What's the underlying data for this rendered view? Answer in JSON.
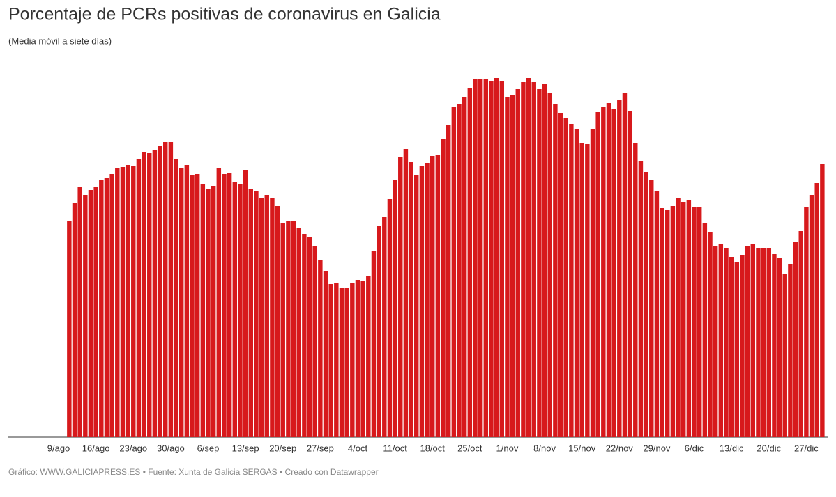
{
  "chart_data": {
    "type": "bar",
    "title": "Porcentaje de PCRs positivas de coronavirus en Galicia",
    "subtitle": "(Media móvil a siete días)",
    "source": "Gráfico: WWW.GALICIAPRESS.ES • Fuente: Xunta de Galicia SERGAS • Creado con Datawrapper",
    "color": "#d7191c",
    "ylim": [
      0,
      550
    ],
    "categories": [
      "9/ago",
      null,
      null,
      null,
      null,
      null,
      null,
      "16/ago",
      null,
      null,
      null,
      null,
      null,
      null,
      "23/ago",
      null,
      null,
      null,
      null,
      null,
      null,
      "30/ago",
      null,
      null,
      null,
      null,
      null,
      null,
      "6/sep",
      null,
      null,
      null,
      null,
      null,
      null,
      "13/sep",
      null,
      null,
      null,
      null,
      null,
      null,
      "20/sep",
      null,
      null,
      null,
      null,
      null,
      null,
      "27/sep",
      null,
      null,
      null,
      null,
      null,
      null,
      "4/oct",
      null,
      null,
      null,
      null,
      null,
      null,
      "11/oct",
      null,
      null,
      null,
      null,
      null,
      null,
      "18/oct",
      null,
      null,
      null,
      null,
      null,
      null,
      "25/oct",
      null,
      null,
      null,
      null,
      null,
      null,
      "1/nov",
      null,
      null,
      null,
      null,
      null,
      null,
      "8/nov",
      null,
      null,
      null,
      null,
      null,
      null,
      "15/nov",
      null,
      null,
      null,
      null,
      null,
      null,
      "22/nov",
      null,
      null,
      null,
      null,
      null,
      null,
      "29/nov",
      null,
      null,
      null,
      null,
      null,
      null,
      "6/dic",
      null,
      null,
      null,
      null,
      null,
      null,
      "13/dic",
      null,
      null,
      null,
      null,
      null,
      null,
      "20/dic",
      null,
      null,
      null,
      null,
      null,
      null,
      "27/dic",
      null,
      null,
      null
    ],
    "values": [
      null,
      null,
      310,
      336,
      360,
      348,
      355,
      360,
      369,
      373,
      378,
      386,
      388,
      391,
      390,
      399,
      409,
      408,
      413,
      418,
      424,
      424,
      400,
      387,
      391,
      377,
      378,
      364,
      357,
      361,
      386,
      378,
      380,
      366,
      363,
      384,
      357,
      353,
      344,
      348,
      344,
      332,
      308,
      311,
      311,
      301,
      292,
      287,
      274,
      254,
      238,
      220,
      221,
      214,
      214,
      222,
      226,
      225,
      232,
      268,
      303,
      316,
      342,
      370,
      403,
      414,
      395,
      376,
      390,
      394,
      404,
      406,
      428,
      449,
      475,
      479,
      489,
      501,
      514,
      515,
      515,
      511,
      516,
      511,
      489,
      491,
      500,
      510,
      516,
      510,
      500,
      507,
      495,
      479,
      466,
      458,
      450,
      443,
      422,
      421,
      443,
      467,
      474,
      480,
      471,
      485,
      494,
      468,
      422,
      396,
      381,
      370,
      354,
      329,
      326,
      332,
      343,
      338,
      341,
      330,
      330,
      307,
      295,
      274,
      278,
      272,
      259,
      252,
      261,
      274,
      278,
      272,
      271,
      272,
      263,
      258,
      235,
      249,
      281,
      296,
      331,
      348,
      365,
      392
    ]
  }
}
